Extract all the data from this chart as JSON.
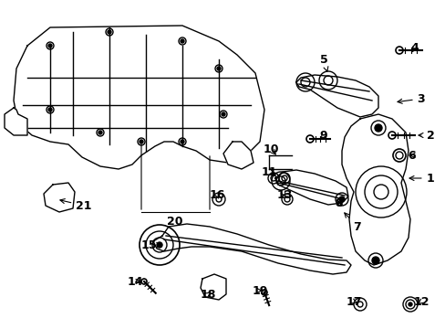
{
  "title": "",
  "background_color": "#ffffff",
  "line_color": "#000000",
  "figsize": [
    4.89,
    3.6
  ],
  "dpi": 100
}
